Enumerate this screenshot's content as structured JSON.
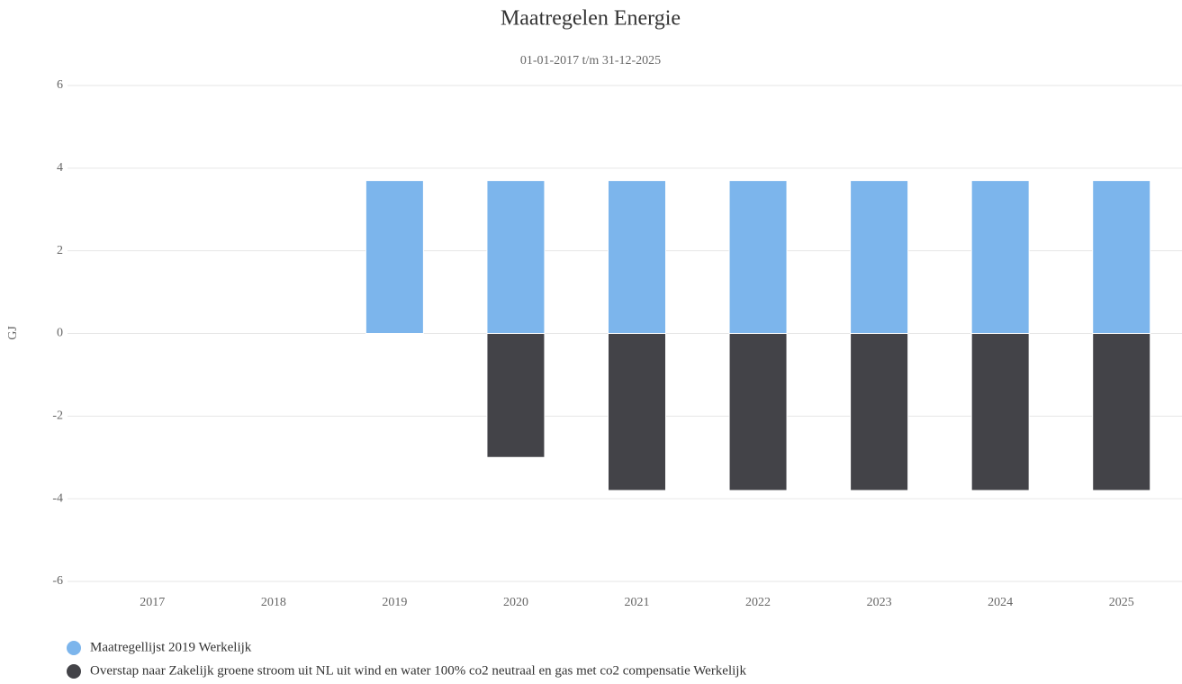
{
  "chart_data": {
    "type": "bar",
    "stacked": true,
    "title": "Maatregelen Energie",
    "subtitle": "01-01-2017 t/m 31-12-2025",
    "y_label": "GJ",
    "categories": [
      "2017",
      "2018",
      "2019",
      "2020",
      "2021",
      "2022",
      "2023",
      "2024",
      "2025"
    ],
    "series": [
      {
        "name": "Maatregellijst 2019 Werkelijk",
        "color": "#7cb5ec",
        "values": [
          null,
          null,
          3.7,
          3.7,
          3.7,
          3.7,
          3.7,
          3.7,
          3.7
        ]
      },
      {
        "name": "Overstap naar Zakelijk groene stroom uit NL uit wind en water 100% co2 neutraal en gas met co2 compensatie Werkelijk",
        "color": "#434348",
        "values": [
          null,
          null,
          null,
          -3.0,
          -3.8,
          -3.8,
          -3.8,
          -3.8,
          -3.8
        ]
      }
    ],
    "ylim": [
      -6,
      6
    ],
    "yticks": [
      -6,
      -4,
      -2,
      0,
      2,
      4,
      6
    ],
    "grid": true
  }
}
